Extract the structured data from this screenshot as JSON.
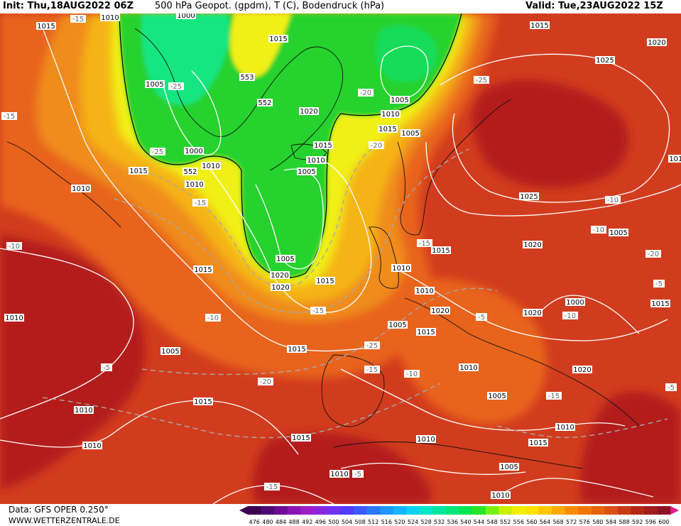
{
  "header": {
    "init": "Init: Thu,18AUG2022 06Z",
    "title": "500 hPa Geopot. (gpdm), T (C), Bodendruck (hPa)",
    "valid": "Valid: Tue,23AUG2022 15Z"
  },
  "footer": {
    "source": "Data: GFS OPER 0.250°",
    "website": "WWW.WETTERZENTRALE.DE"
  },
  "scale": {
    "values": [
      "476",
      "480",
      "484",
      "488",
      "492",
      "496",
      "500",
      "504",
      "508",
      "512",
      "516",
      "520",
      "524",
      "528",
      "532",
      "536",
      "540",
      "544",
      "548",
      "552",
      "556",
      "560",
      "564",
      "568",
      "572",
      "576",
      "580",
      "584",
      "588",
      "592",
      "596",
      "600"
    ],
    "colors": [
      "#3c0050",
      "#500a78",
      "#6e0a96",
      "#8c14b4",
      "#a01ec8",
      "#8c28dc",
      "#6e32f0",
      "#503cff",
      "#3c5aff",
      "#2878ff",
      "#1e96ff",
      "#14b4ff",
      "#0ad2f0",
      "#00e6c8",
      "#00e6a0",
      "#00e678",
      "#00e650",
      "#28e628",
      "#78f014",
      "#c8f000",
      "#f0f000",
      "#ffe100",
      "#ffc800",
      "#ffaa00",
      "#ff8c00",
      "#f07800",
      "#e66400",
      "#dc5014",
      "#c83c14",
      "#b42814",
      "#a01e1e",
      "#8c1428"
    ]
  },
  "map": {
    "colors": {
      "ocean_red": "#c8281e",
      "deep_red": "#b41e1e",
      "orange_red": "#e65a14",
      "orange": "#f0781e",
      "light_orange": "#f5a014",
      "yellow": "#f5f014",
      "green": "#1ede28",
      "teal": "#28e678",
      "isobar": "#ffffff",
      "isotherm": "#a0a0a0"
    },
    "pressure_labels": [
      "1010",
      "1000",
      "1015",
      "1015",
      "1025",
      "1025",
      "1005",
      "-25",
      "1005",
      "1020",
      "1010",
      "1015",
      "1000",
      "1010",
      "-20",
      "-25",
      "552",
      "552",
      "553",
      "1015",
      "1010",
      "1005",
      "-20",
      "-15",
      "-15",
      "1015",
      "1010",
      "1005",
      "1015",
      "1020",
      "1020",
      "1015",
      "-15",
      "1015",
      "-25",
      "-20",
      "-15",
      "1010",
      "1010",
      "1010",
      "1010",
      "1015",
      "-10",
      "1015",
      "-10",
      "-10",
      "1005",
      "1020",
      "-5",
      "-10",
      "1020",
      "1020",
      "1015",
      "1010",
      "-5",
      "-10",
      "-15",
      "1010",
      "1010",
      "-5",
      "1010",
      "1005",
      "1010",
      "-15",
      "-20",
      "-15",
      "1015",
      "1020",
      "-25",
      "1005",
      "1005",
      "1015",
      "-5",
      "1000",
      "1015",
      "1015",
      "1010",
      "-5",
      "-10",
      "1010",
      "1005",
      "-15",
      "1005",
      "1015",
      "1020"
    ]
  }
}
